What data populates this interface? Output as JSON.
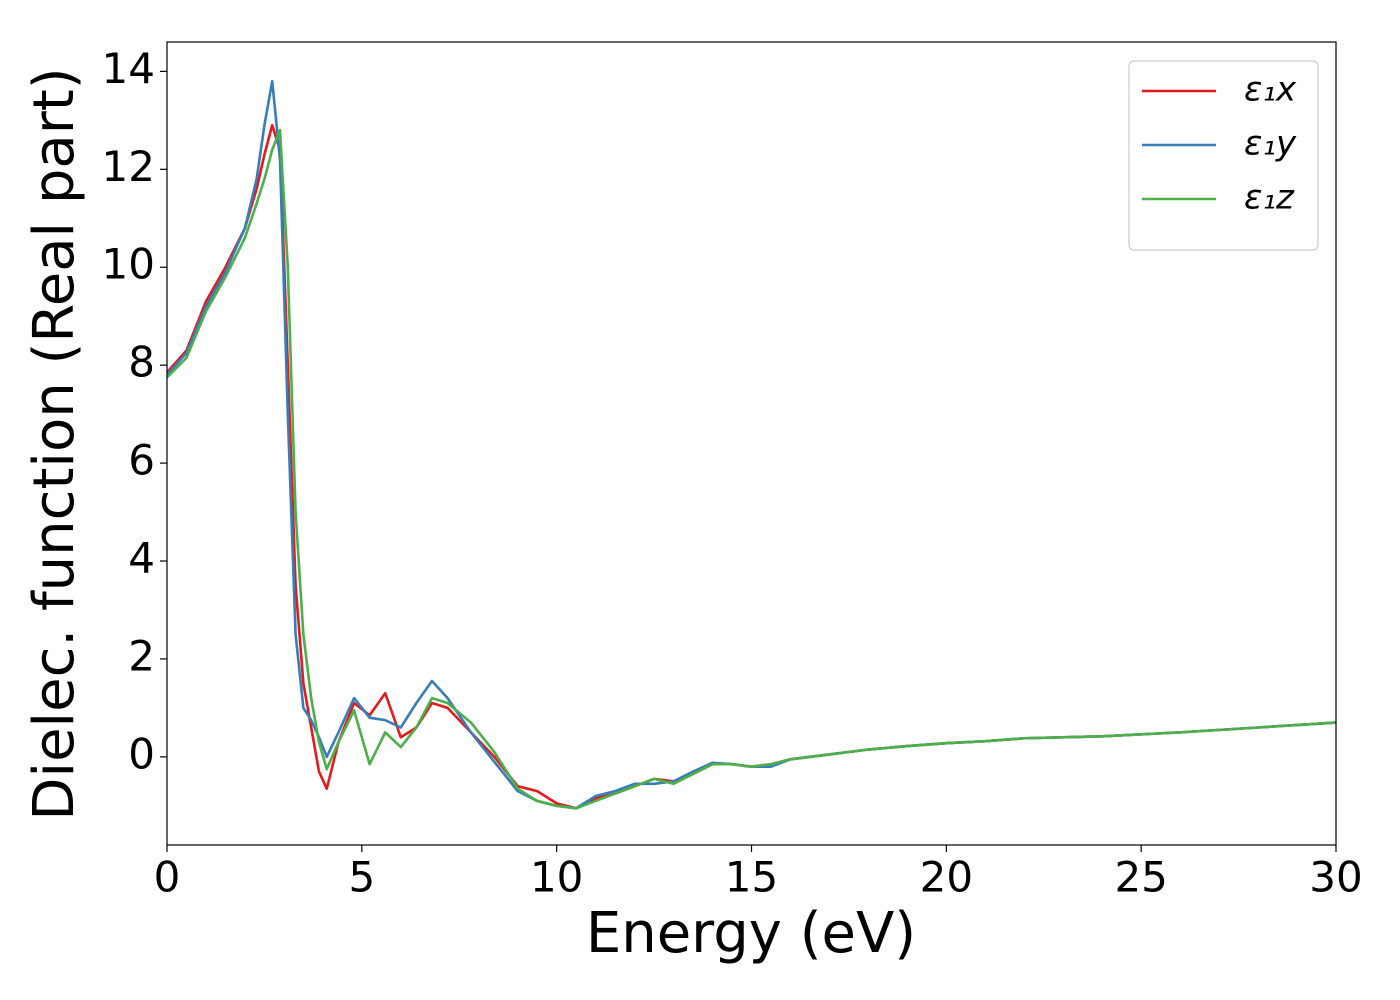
{
  "chart_data": {
    "type": "line",
    "xlabel": "Energy (eV)",
    "ylabel": "Dielec. function (Real part)",
    "x": [
      0,
      0.5,
      1,
      1.5,
      2,
      2.3,
      2.5,
      2.7,
      2.9,
      3.1,
      3.3,
      3.5,
      3.7,
      3.9,
      4.1,
      4.4,
      4.8,
      5.2,
      5.6,
      6.0,
      6.4,
      6.8,
      7.2,
      7.8,
      8.4,
      9.0,
      9.5,
      10,
      10.5,
      11,
      11.5,
      12,
      12.5,
      13,
      13.5,
      14,
      14.5,
      15,
      15.5,
      16,
      17,
      18,
      19,
      20,
      21,
      22,
      24,
      26,
      28,
      30
    ],
    "series": [
      {
        "name": "ε₁x",
        "color": "#e41a1c",
        "values": [
          7.85,
          8.3,
          9.3,
          10.0,
          10.8,
          11.6,
          12.3,
          12.9,
          12.4,
          8,
          3.5,
          1.5,
          0.6,
          -0.3,
          -0.65,
          0.3,
          1.1,
          0.85,
          1.3,
          0.4,
          0.6,
          1.1,
          1.0,
          0.5,
          0.0,
          -0.6,
          -0.7,
          -0.95,
          -1.05,
          -0.85,
          -0.75,
          -0.6,
          -0.45,
          -0.5,
          -0.35,
          -0.15,
          -0.15,
          -0.2,
          -0.15,
          -0.05,
          0.05,
          0.15,
          0.22,
          0.28,
          0.32,
          0.38,
          0.42,
          0.5,
          0.6,
          0.7
        ]
      },
      {
        "name": "ε₁y",
        "color": "#377eb8",
        "values": [
          7.8,
          8.25,
          9.2,
          9.9,
          10.8,
          11.8,
          12.9,
          13.8,
          12.2,
          7,
          2.5,
          1.0,
          0.75,
          0.4,
          0.0,
          0.5,
          1.2,
          0.8,
          0.75,
          0.6,
          1.1,
          1.55,
          1.2,
          0.5,
          -0.1,
          -0.7,
          -0.9,
          -1.0,
          -1.05,
          -0.8,
          -0.7,
          -0.55,
          -0.55,
          -0.5,
          -0.3,
          -0.12,
          -0.15,
          -0.2,
          -0.2,
          -0.05,
          0.05,
          0.15,
          0.22,
          0.28,
          0.32,
          0.38,
          0.42,
          0.5,
          0.6,
          0.7
        ]
      },
      {
        "name": "ε₁z",
        "color": "#4daf4a",
        "values": [
          7.75,
          8.15,
          9.1,
          9.8,
          10.6,
          11.3,
          11.8,
          12.4,
          12.8,
          10,
          5,
          2.5,
          1.2,
          0.3,
          -0.25,
          0.3,
          0.95,
          -0.15,
          0.5,
          0.2,
          0.6,
          1.2,
          1.1,
          0.7,
          0.1,
          -0.65,
          -0.9,
          -1.0,
          -1.05,
          -0.9,
          -0.75,
          -0.6,
          -0.45,
          -0.55,
          -0.35,
          -0.15,
          -0.15,
          -0.2,
          -0.15,
          -0.05,
          0.05,
          0.15,
          0.22,
          0.28,
          0.32,
          0.38,
          0.42,
          0.5,
          0.6,
          0.7
        ]
      }
    ],
    "xlim": [
      0,
      30
    ],
    "ylim": [
      -1.8,
      14.6
    ],
    "xticks": [
      0,
      5,
      10,
      15,
      20,
      25,
      30
    ],
    "yticks": [
      0,
      2,
      4,
      6,
      8,
      10,
      12,
      14
    ],
    "legend": "upper right",
    "grid": false
  }
}
